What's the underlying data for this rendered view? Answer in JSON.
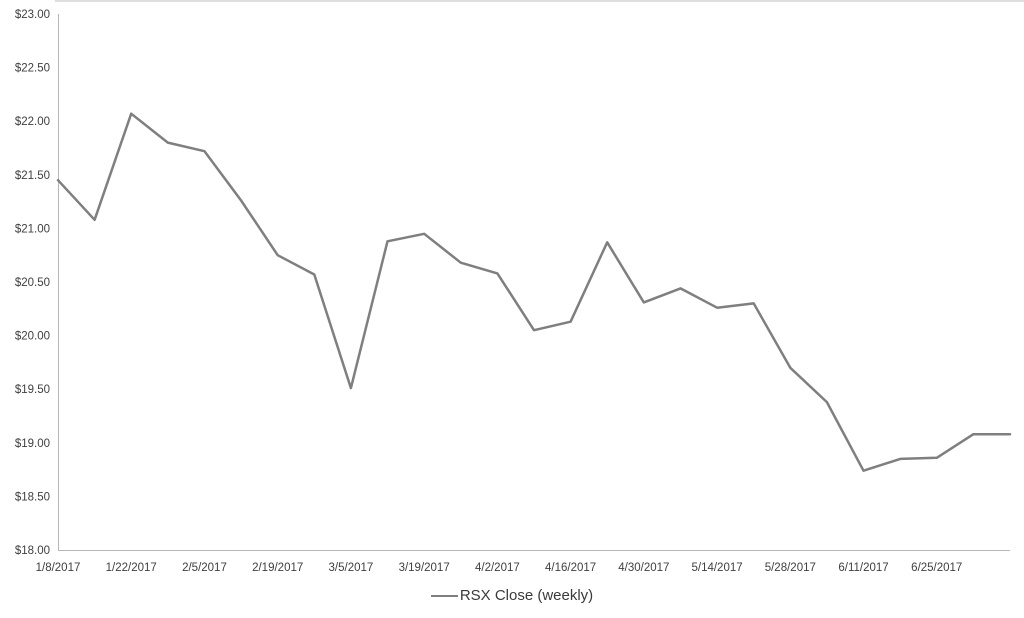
{
  "page": {
    "background_color": "#ffffff"
  },
  "chart_data": {
    "type": "line",
    "title": "",
    "xlabel": "",
    "ylabel": "",
    "ylim": [
      18.0,
      23.0
    ],
    "y_tick_step": 0.5,
    "grid": false,
    "legend_position": "bottom-center",
    "axis_color": "#b7b7b7",
    "text_color": "#3f3f3f",
    "series": [
      {
        "name": "RSX Close (weekly)",
        "color": "#7f7f7f",
        "x": [
          "1/8/2017",
          "1/15/2017",
          "1/22/2017",
          "1/29/2017",
          "2/5/2017",
          "2/12/2017",
          "2/19/2017",
          "2/26/2017",
          "3/5/2017",
          "3/12/2017",
          "3/19/2017",
          "3/26/2017",
          "4/2/2017",
          "4/9/2017",
          "4/16/2017",
          "4/23/2017",
          "4/30/2017",
          "5/7/2017",
          "5/14/2017",
          "5/21/2017",
          "5/28/2017",
          "6/4/2017",
          "6/11/2017",
          "6/18/2017",
          "6/25/2017",
          "7/2/2017",
          "7/9/2017"
        ],
        "values": [
          21.45,
          21.08,
          22.07,
          21.8,
          21.72,
          21.26,
          20.75,
          20.57,
          19.51,
          20.88,
          20.95,
          20.68,
          20.58,
          20.05,
          20.13,
          20.87,
          20.31,
          20.44,
          20.26,
          20.3,
          19.7,
          19.38,
          18.74,
          18.85,
          18.86,
          19.08,
          19.08
        ]
      }
    ],
    "y_ticks": [
      {
        "value": 23.0,
        "label": "$23.00"
      },
      {
        "value": 22.5,
        "label": "$22.50"
      },
      {
        "value": 22.0,
        "label": "$22.00"
      },
      {
        "value": 21.5,
        "label": "$21.50"
      },
      {
        "value": 21.0,
        "label": "$21.00"
      },
      {
        "value": 20.5,
        "label": "$20.50"
      },
      {
        "value": 20.0,
        "label": "$20.00"
      },
      {
        "value": 19.5,
        "label": "$19.50"
      },
      {
        "value": 19.0,
        "label": "$19.00"
      },
      {
        "value": 18.5,
        "label": "$18.50"
      },
      {
        "value": 18.0,
        "label": "$18.00"
      }
    ],
    "x_tick_step": 2,
    "x_tick_labels": [
      "1/8/2017",
      "1/22/2017",
      "2/5/2017",
      "2/19/2017",
      "3/5/2017",
      "3/19/2017",
      "4/2/2017",
      "4/16/2017",
      "4/30/2017",
      "5/14/2017",
      "5/28/2017",
      "6/11/2017",
      "6/25/2017"
    ]
  }
}
